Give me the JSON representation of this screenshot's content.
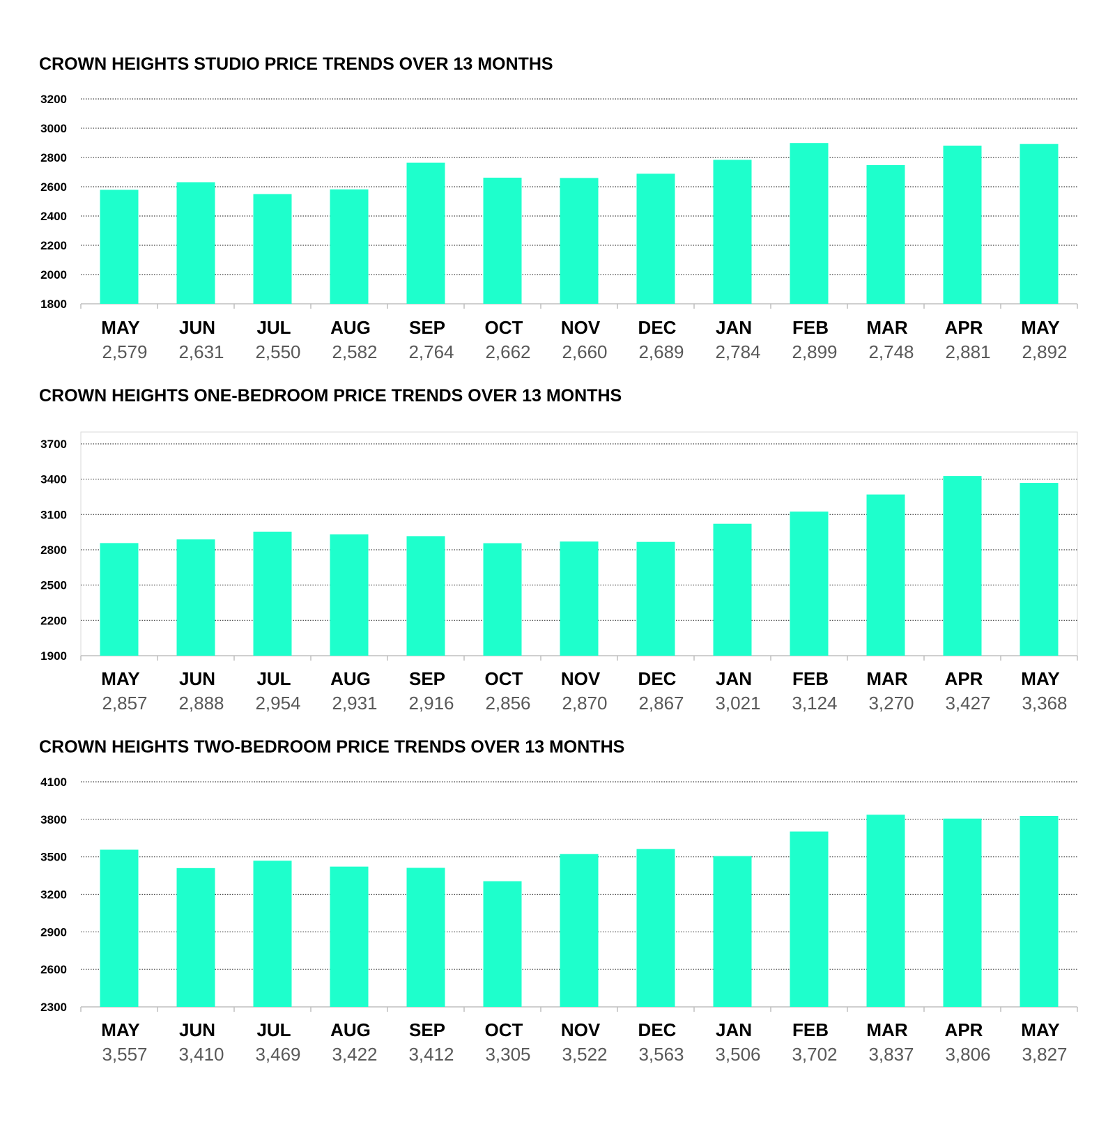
{
  "colors": {
    "bar": "#1effcc",
    "grid": "#404040",
    "axis": "#bfbfbf"
  },
  "chart_data": [
    {
      "type": "bar",
      "title": "CROWN HEIGHTS STUDIO PRICE TRENDS OVER 13 MONTHS",
      "categories": [
        "MAY",
        "JUN",
        "JUL",
        "AUG",
        "SEP",
        "OCT",
        "NOV",
        "DEC",
        "JAN",
        "FEB",
        "MAR",
        "APR",
        "MAY"
      ],
      "values": [
        2579,
        2631,
        2550,
        2582,
        2764,
        2662,
        2660,
        2689,
        2784,
        2899,
        2748,
        2881,
        2892
      ],
      "value_labels": [
        "2,579",
        "2,631",
        "2,550",
        "2,582",
        "2,764",
        "2,662",
        "2,660",
        "2,689",
        "2,784",
        "2,899",
        "2,748",
        "2,881",
        "2,892"
      ],
      "ylim": [
        1800,
        3200
      ],
      "yticks": [
        1800,
        2000,
        2200,
        2400,
        2600,
        2800,
        3000,
        3200
      ],
      "grid": true
    },
    {
      "type": "bar",
      "title": "CROWN HEIGHTS ONE-BEDROOM PRICE TRENDS OVER 13 MONTHS",
      "categories": [
        "MAY",
        "JUN",
        "JUL",
        "AUG",
        "SEP",
        "OCT",
        "NOV",
        "DEC",
        "JAN",
        "FEB",
        "MAR",
        "APR",
        "MAY"
      ],
      "values": [
        2857,
        2888,
        2954,
        2931,
        2916,
        2856,
        2870,
        2867,
        3021,
        3124,
        3270,
        3427,
        3368
      ],
      "value_labels": [
        "2,857",
        "2,888",
        "2,954",
        "2,931",
        "2,916",
        "2,856",
        "2,870",
        "2,867",
        "3,021",
        "3,124",
        "3,270",
        "3,427",
        "3,368"
      ],
      "ylim": [
        1900,
        3800
      ],
      "yticks": [
        1900,
        2200,
        2500,
        2800,
        3100,
        3400,
        3700
      ],
      "grid": true
    },
    {
      "type": "bar",
      "title": "CROWN HEIGHTS TWO-BEDROOM PRICE TRENDS OVER 13 MONTHS",
      "categories": [
        "MAY",
        "JUN",
        "JUL",
        "AUG",
        "SEP",
        "OCT",
        "NOV",
        "DEC",
        "JAN",
        "FEB",
        "MAR",
        "APR",
        "MAY"
      ],
      "values": [
        3557,
        3410,
        3469,
        3422,
        3412,
        3305,
        3522,
        3563,
        3506,
        3702,
        3837,
        3806,
        3827
      ],
      "value_labels": [
        "3,557",
        "3,410",
        "3,469",
        "3,422",
        "3,412",
        "3,305",
        "3,522",
        "3,563",
        "3,506",
        "3,702",
        "3,837",
        "3,806",
        "3,827"
      ],
      "ylim": [
        2300,
        4100
      ],
      "yticks": [
        2300,
        2600,
        2900,
        3200,
        3500,
        3800,
        4100
      ],
      "grid": true
    }
  ]
}
